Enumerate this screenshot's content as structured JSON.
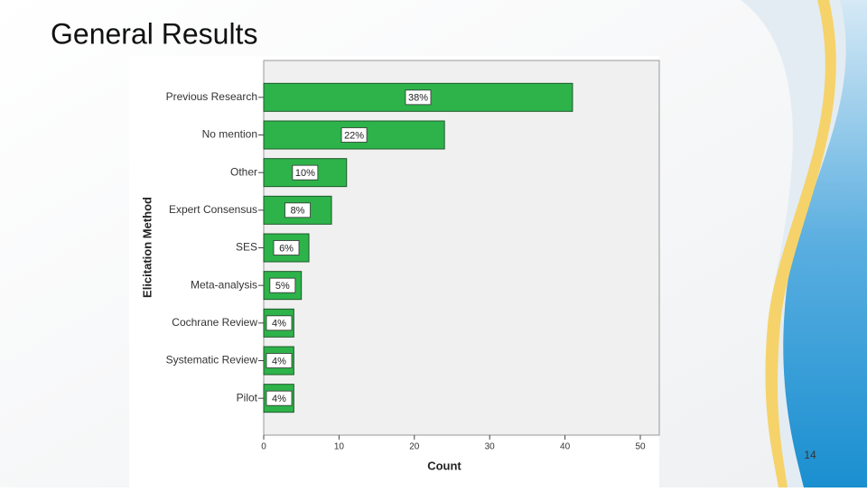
{
  "title": "General Results",
  "page_number": "14",
  "chart_data": {
    "type": "hbar",
    "x_label": "Count",
    "y_label": "Elicitation Method",
    "categories": [
      "Previous Research",
      "No mention",
      "Other",
      "Expert Consensus",
      "SES",
      "Meta-analysis",
      "Cochrane Review",
      "Systematic Review",
      "Pilot"
    ],
    "values": [
      41,
      24,
      11,
      9,
      6,
      5,
      4,
      4,
      4
    ],
    "bar_labels": [
      "38%",
      "22%",
      "10%",
      "8%",
      "6%",
      "5%",
      "4%",
      "4%",
      "4%"
    ],
    "color": "#2db34a",
    "xlim": [
      0,
      50
    ],
    "xticks": [
      0,
      10,
      20,
      30,
      40,
      50
    ]
  }
}
